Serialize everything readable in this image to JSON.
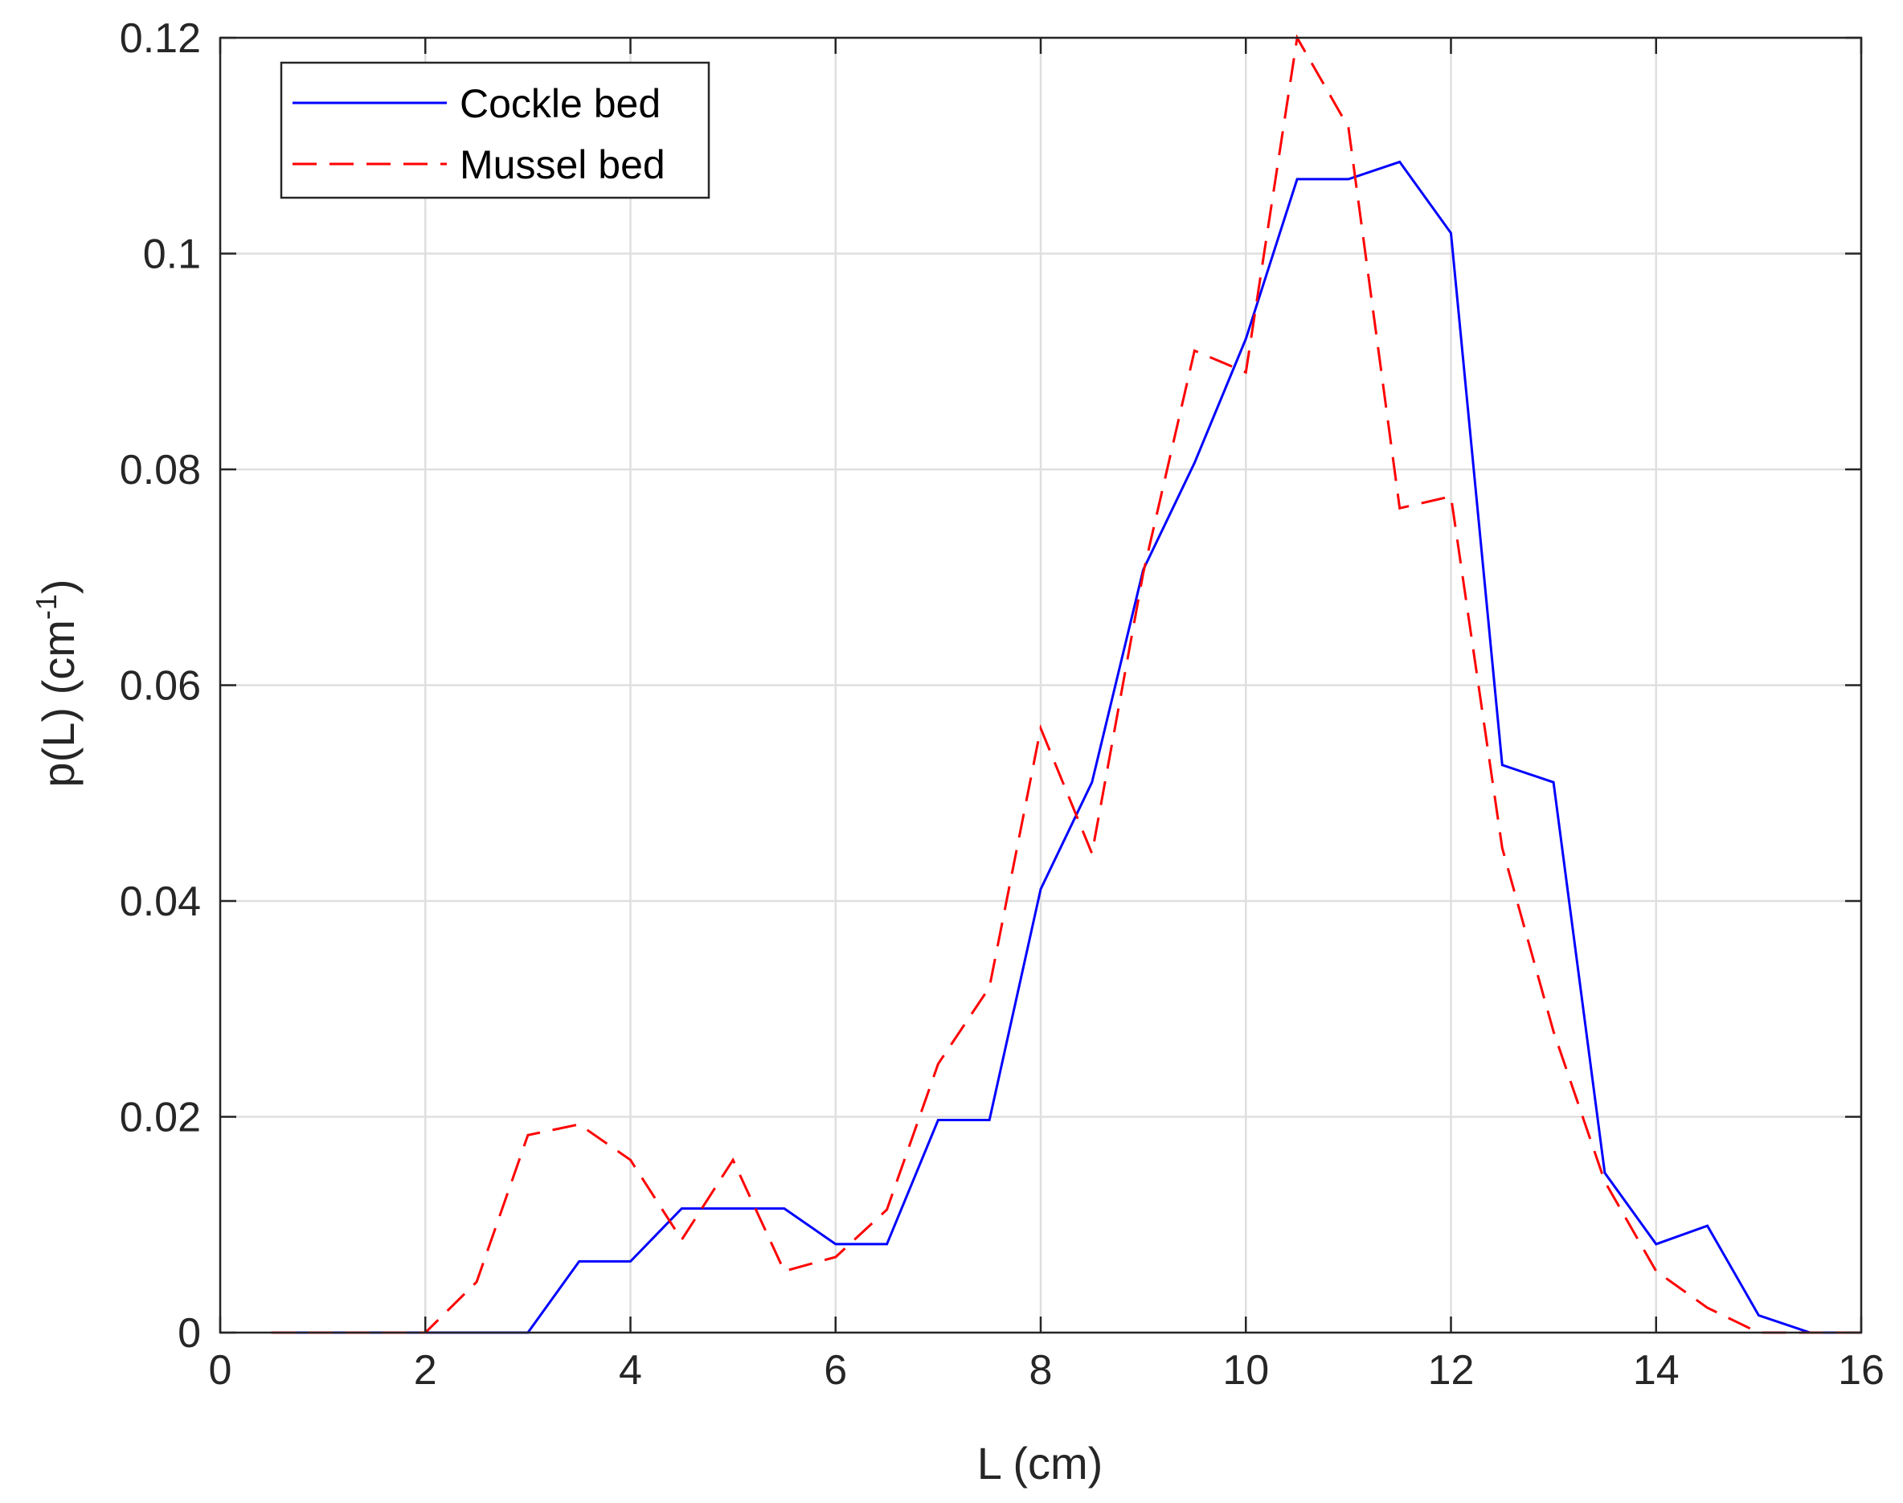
{
  "chart_data": {
    "type": "line",
    "xlabel": "L (cm)",
    "ylabel_main": "p(L) (cm",
    "ylabel_sup": "-1",
    "ylabel_close": ")",
    "xlim": [
      0,
      16
    ],
    "ylim": [
      0,
      0.12
    ],
    "xticks": [
      0,
      2,
      4,
      6,
      8,
      10,
      12,
      14,
      16
    ],
    "xtick_labels": [
      "0",
      "2",
      "4",
      "6",
      "8",
      "10",
      "12",
      "14",
      "16"
    ],
    "yticks": [
      0,
      0.02,
      0.04,
      0.06,
      0.08,
      0.1,
      0.12
    ],
    "ytick_labels": [
      "0",
      "0.02",
      "0.04",
      "0.06",
      "0.08",
      "0.1",
      "0.12"
    ],
    "grid": true,
    "legend_position": "top-left",
    "colors": {
      "cockle": "#0000ff",
      "mussel": "#ff0000",
      "grid": "#dfdfdf",
      "axis": "#262626"
    },
    "series": [
      {
        "name": "Cockle bed",
        "style": "solid",
        "x": [
          0.5,
          1,
          1.5,
          2,
          2.5,
          3,
          3.5,
          4,
          4.5,
          5,
          5.5,
          6,
          6.5,
          7,
          7.5,
          8,
          8.5,
          9,
          9.5,
          10,
          10.5,
          11,
          11.5,
          12,
          12.5,
          13,
          13.5,
          14,
          14.5,
          15,
          15.5,
          16
        ],
        "y": [
          0,
          0,
          0,
          0,
          0,
          0,
          0.0066,
          0.0066,
          0.0115,
          0.0115,
          0.0115,
          0.0082,
          0.0082,
          0.0197,
          0.0197,
          0.0411,
          0.051,
          0.0707,
          0.0806,
          0.0921,
          0.1069,
          0.1069,
          0.1085,
          0.1019,
          0.0526,
          0.051,
          0.0148,
          0.0082,
          0.0099,
          0.0016,
          0,
          0
        ]
      },
      {
        "name": "Mussel bed",
        "style": "dashed",
        "x": [
          0.5,
          1,
          1.5,
          2,
          2.5,
          3,
          3.5,
          4,
          4.5,
          5,
          5.5,
          6,
          6.5,
          7,
          7.5,
          8,
          8.5,
          9,
          9.5,
          10,
          10.5,
          11,
          11.5,
          12,
          12.5,
          13,
          13.5,
          14,
          14.5,
          15,
          15.5,
          16
        ],
        "y": [
          0,
          0,
          0,
          0,
          0.0047,
          0.0183,
          0.0193,
          0.016,
          0.0086,
          0.016,
          0.0057,
          0.007,
          0.0114,
          0.0249,
          0.032,
          0.056,
          0.0444,
          0.0704,
          0.091,
          0.089,
          0.12,
          0.1117,
          0.0764,
          0.0775,
          0.0449,
          0.0279,
          0.014,
          0.0057,
          0.0023,
          0,
          0,
          0
        ]
      }
    ]
  }
}
